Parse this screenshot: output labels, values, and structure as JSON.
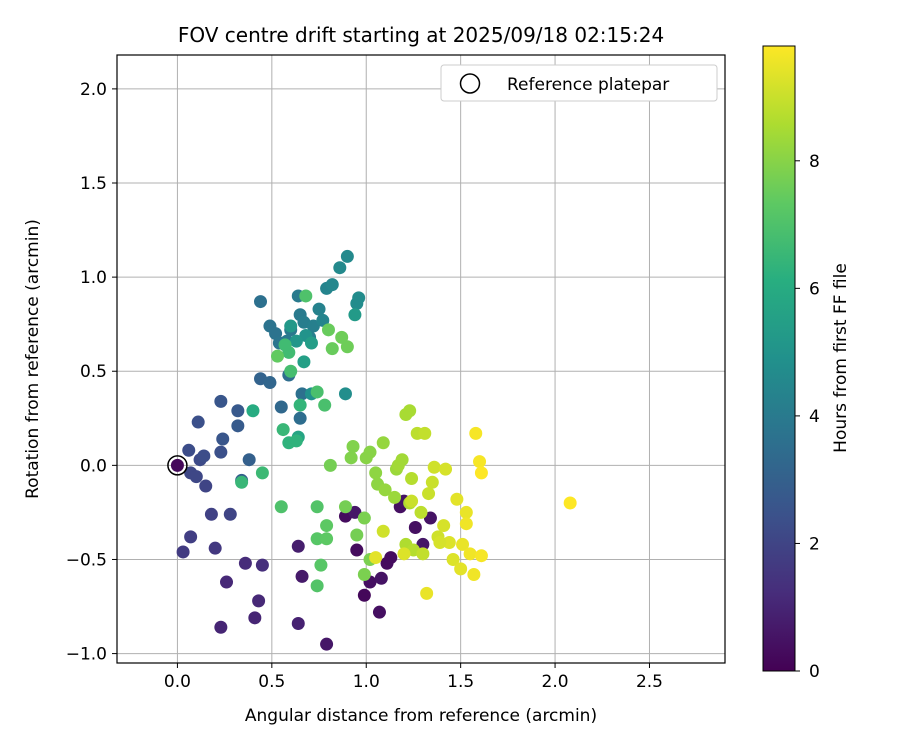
{
  "chart_data": {
    "type": "scatter",
    "title": "FOV centre drift starting at 2025/09/18 02:15:24",
    "xlabel": "Angular distance from reference (arcmin)",
    "ylabel": "Rotation from reference (arcmin)",
    "xlim": [
      -0.32,
      2.9
    ],
    "ylim": [
      -1.05,
      2.18
    ],
    "xticks": [
      "0.0",
      "0.5",
      "1.0",
      "1.5",
      "2.0",
      "2.5"
    ],
    "xtick_values": [
      0,
      0.5,
      1.0,
      1.5,
      2.0,
      2.5
    ],
    "yticks": [
      "−1.0",
      "−0.5",
      "0.0",
      "0.5",
      "1.0",
      "1.5",
      "2.0"
    ],
    "ytick_values": [
      -1.0,
      -0.5,
      0.0,
      0.5,
      1.0,
      1.5,
      2.0
    ],
    "grid": true,
    "legend": {
      "position": "top-right",
      "label": "Reference platepar"
    },
    "reference_point": {
      "x": 0.0,
      "y": 0.0
    },
    "colorbar": {
      "label": "Hours from first FF file",
      "colormap": "viridis",
      "range": [
        0,
        9.8
      ],
      "ticks": [
        "0",
        "2",
        "4",
        "6",
        "8"
      ],
      "tick_values": [
        0,
        2,
        4,
        6,
        8
      ]
    },
    "point_color_encoding": "c = hours from first FF file",
    "points": [
      {
        "x": 0.0,
        "y": 0.0,
        "c": 0.2
      },
      {
        "x": 0.89,
        "y": -0.27,
        "c": 0.3
      },
      {
        "x": 0.95,
        "y": -0.45,
        "c": 0.3
      },
      {
        "x": 0.99,
        "y": -0.69,
        "c": 0.2
      },
      {
        "x": 1.02,
        "y": -0.62,
        "c": 0.4
      },
      {
        "x": 1.07,
        "y": -0.78,
        "c": 0.4
      },
      {
        "x": 1.08,
        "y": -0.6,
        "c": 0.5
      },
      {
        "x": 1.11,
        "y": -0.52,
        "c": 0.3
      },
      {
        "x": 1.13,
        "y": -0.49,
        "c": 0.3
      },
      {
        "x": 1.18,
        "y": -0.22,
        "c": 0.4
      },
      {
        "x": 1.2,
        "y": -0.19,
        "c": 0.5
      },
      {
        "x": 1.26,
        "y": -0.33,
        "c": 0.4
      },
      {
        "x": 1.3,
        "y": -0.42,
        "c": 0.6
      },
      {
        "x": 1.34,
        "y": -0.28,
        "c": 0.5
      },
      {
        "x": 0.94,
        "y": -0.25,
        "c": 0.6
      },
      {
        "x": 0.79,
        "y": -0.95,
        "c": 0.6
      },
      {
        "x": 0.66,
        "y": -0.59,
        "c": 0.7
      },
      {
        "x": 0.64,
        "y": -0.43,
        "c": 0.8
      },
      {
        "x": 0.64,
        "y": -0.84,
        "c": 0.9
      },
      {
        "x": 0.23,
        "y": -0.86,
        "c": 1.0
      },
      {
        "x": 0.41,
        "y": -0.81,
        "c": 1.0
      },
      {
        "x": 0.43,
        "y": -0.72,
        "c": 1.1
      },
      {
        "x": 0.26,
        "y": -0.62,
        "c": 1.1
      },
      {
        "x": 0.36,
        "y": -0.52,
        "c": 1.2
      },
      {
        "x": 0.45,
        "y": -0.53,
        "c": 1.3
      },
      {
        "x": 0.2,
        "y": -0.44,
        "c": 1.6
      },
      {
        "x": 0.03,
        "y": -0.46,
        "c": 1.7
      },
      {
        "x": 0.07,
        "y": -0.38,
        "c": 1.8
      },
      {
        "x": 0.18,
        "y": -0.26,
        "c": 1.9
      },
      {
        "x": 0.28,
        "y": -0.26,
        "c": 2.0
      },
      {
        "x": 0.15,
        "y": -0.11,
        "c": 2.0
      },
      {
        "x": 0.07,
        "y": -0.04,
        "c": 2.1
      },
      {
        "x": 0.1,
        "y": -0.06,
        "c": 2.1
      },
      {
        "x": 0.12,
        "y": 0.03,
        "c": 2.2
      },
      {
        "x": 0.14,
        "y": 0.05,
        "c": 2.3
      },
      {
        "x": 0.06,
        "y": 0.08,
        "c": 2.3
      },
      {
        "x": 0.23,
        "y": 0.07,
        "c": 2.4
      },
      {
        "x": 0.11,
        "y": 0.23,
        "c": 2.4
      },
      {
        "x": 0.24,
        "y": 0.14,
        "c": 2.6
      },
      {
        "x": 0.23,
        "y": 0.34,
        "c": 2.6
      },
      {
        "x": 0.32,
        "y": 0.29,
        "c": 2.7
      },
      {
        "x": 0.32,
        "y": 0.21,
        "c": 2.8
      },
      {
        "x": 0.38,
        "y": 0.03,
        "c": 3.0
      },
      {
        "x": 0.34,
        "y": -0.08,
        "c": 3.0
      },
      {
        "x": 0.44,
        "y": 0.46,
        "c": 3.1
      },
      {
        "x": 0.49,
        "y": 0.44,
        "c": 3.2
      },
      {
        "x": 0.55,
        "y": 0.31,
        "c": 3.3
      },
      {
        "x": 0.59,
        "y": 0.48,
        "c": 3.5
      },
      {
        "x": 0.65,
        "y": 0.25,
        "c": 3.5
      },
      {
        "x": 0.66,
        "y": 0.38,
        "c": 3.6
      },
      {
        "x": 0.44,
        "y": 0.87,
        "c": 3.6
      },
      {
        "x": 0.49,
        "y": 0.74,
        "c": 3.7
      },
      {
        "x": 0.52,
        "y": 0.7,
        "c": 3.7
      },
      {
        "x": 0.54,
        "y": 0.65,
        "c": 3.8
      },
      {
        "x": 0.58,
        "y": 0.66,
        "c": 3.9
      },
      {
        "x": 0.6,
        "y": 0.72,
        "c": 3.9
      },
      {
        "x": 0.64,
        "y": 0.9,
        "c": 4.0
      },
      {
        "x": 0.65,
        "y": 0.8,
        "c": 4.0
      },
      {
        "x": 0.67,
        "y": 0.76,
        "c": 4.1
      },
      {
        "x": 0.7,
        "y": 0.68,
        "c": 4.2
      },
      {
        "x": 0.72,
        "y": 0.74,
        "c": 4.2
      },
      {
        "x": 0.75,
        "y": 0.83,
        "c": 4.3
      },
      {
        "x": 0.77,
        "y": 0.77,
        "c": 4.4
      },
      {
        "x": 0.79,
        "y": 0.94,
        "c": 4.4
      },
      {
        "x": 0.82,
        "y": 0.96,
        "c": 4.5
      },
      {
        "x": 0.86,
        "y": 1.05,
        "c": 4.6
      },
      {
        "x": 0.9,
        "y": 1.11,
        "c": 4.6
      },
      {
        "x": 0.95,
        "y": 0.86,
        "c": 4.7
      },
      {
        "x": 0.96,
        "y": 0.89,
        "c": 4.7
      },
      {
        "x": 0.89,
        "y": 0.38,
        "c": 4.8
      },
      {
        "x": 0.71,
        "y": 0.38,
        "c": 4.9
      },
      {
        "x": 0.68,
        "y": 0.69,
        "c": 5.0
      },
      {
        "x": 0.63,
        "y": 0.66,
        "c": 5.1
      },
      {
        "x": 0.6,
        "y": 0.74,
        "c": 5.2
      },
      {
        "x": 0.94,
        "y": 0.8,
        "c": 5.3
      },
      {
        "x": 0.71,
        "y": 0.65,
        "c": 5.4
      },
      {
        "x": 0.67,
        "y": 0.55,
        "c": 5.5
      },
      {
        "x": 0.64,
        "y": 0.15,
        "c": 5.7
      },
      {
        "x": 0.4,
        "y": 0.29,
        "c": 6.0
      },
      {
        "x": 0.59,
        "y": 0.12,
        "c": 6.3
      },
      {
        "x": 0.63,
        "y": 0.13,
        "c": 6.3
      },
      {
        "x": 0.65,
        "y": 0.32,
        "c": 6.4
      },
      {
        "x": 0.56,
        "y": 0.19,
        "c": 6.5
      },
      {
        "x": 0.34,
        "y": -0.09,
        "c": 6.5
      },
      {
        "x": 0.45,
        "y": -0.04,
        "c": 6.6
      },
      {
        "x": 0.59,
        "y": 0.6,
        "c": 6.7
      },
      {
        "x": 0.57,
        "y": 0.64,
        "c": 6.7
      },
      {
        "x": 0.6,
        "y": 0.5,
        "c": 6.8
      },
      {
        "x": 0.74,
        "y": 0.39,
        "c": 6.9
      },
      {
        "x": 0.78,
        "y": 0.32,
        "c": 6.9
      },
      {
        "x": 0.68,
        "y": 0.9,
        "c": 7.0
      },
      {
        "x": 0.55,
        "y": -0.22,
        "c": 7.0
      },
      {
        "x": 0.74,
        "y": -0.22,
        "c": 7.1
      },
      {
        "x": 0.74,
        "y": -0.64,
        "c": 7.1
      },
      {
        "x": 0.76,
        "y": -0.53,
        "c": 7.2
      },
      {
        "x": 0.74,
        "y": -0.39,
        "c": 7.2
      },
      {
        "x": 0.79,
        "y": -0.39,
        "c": 7.3
      },
      {
        "x": 0.79,
        "y": -0.32,
        "c": 7.3
      },
      {
        "x": 0.53,
        "y": 0.58,
        "c": 7.4
      },
      {
        "x": 0.8,
        "y": 0.72,
        "c": 7.5
      },
      {
        "x": 0.82,
        "y": 0.62,
        "c": 7.5
      },
      {
        "x": 0.87,
        "y": 0.68,
        "c": 7.6
      },
      {
        "x": 0.9,
        "y": 0.63,
        "c": 7.6
      },
      {
        "x": 0.81,
        "y": 0.0,
        "c": 7.7
      },
      {
        "x": 0.89,
        "y": -0.22,
        "c": 7.7
      },
      {
        "x": 0.95,
        "y": -0.37,
        "c": 7.7
      },
      {
        "x": 0.99,
        "y": -0.58,
        "c": 7.8
      },
      {
        "x": 1.02,
        "y": -0.5,
        "c": 7.8
      },
      {
        "x": 0.99,
        "y": -0.28,
        "c": 7.8
      },
      {
        "x": 0.92,
        "y": 0.04,
        "c": 7.9
      },
      {
        "x": 0.93,
        "y": 0.1,
        "c": 7.9
      },
      {
        "x": 1.0,
        "y": 0.04,
        "c": 8.0
      },
      {
        "x": 1.02,
        "y": 0.07,
        "c": 8.0
      },
      {
        "x": 1.05,
        "y": -0.04,
        "c": 8.1
      },
      {
        "x": 1.06,
        "y": -0.1,
        "c": 8.1
      },
      {
        "x": 1.09,
        "y": 0.12,
        "c": 8.2
      },
      {
        "x": 1.1,
        "y": -0.13,
        "c": 8.2
      },
      {
        "x": 1.15,
        "y": -0.17,
        "c": 8.3
      },
      {
        "x": 1.16,
        "y": -0.02,
        "c": 8.3
      },
      {
        "x": 1.17,
        "y": 0.0,
        "c": 8.4
      },
      {
        "x": 1.19,
        "y": 0.03,
        "c": 8.4
      },
      {
        "x": 1.21,
        "y": 0.27,
        "c": 8.5
      },
      {
        "x": 1.23,
        "y": 0.29,
        "c": 8.5
      },
      {
        "x": 1.21,
        "y": -0.42,
        "c": 8.6
      },
      {
        "x": 1.23,
        "y": -0.2,
        "c": 8.6
      },
      {
        "x": 1.24,
        "y": -0.07,
        "c": 8.7
      },
      {
        "x": 1.25,
        "y": -0.45,
        "c": 8.7
      },
      {
        "x": 1.27,
        "y": 0.17,
        "c": 8.8
      },
      {
        "x": 1.29,
        "y": -0.25,
        "c": 8.8
      },
      {
        "x": 1.3,
        "y": -0.47,
        "c": 8.9
      },
      {
        "x": 1.31,
        "y": 0.17,
        "c": 8.9
      },
      {
        "x": 1.33,
        "y": -0.15,
        "c": 9.0
      },
      {
        "x": 1.35,
        "y": -0.09,
        "c": 9.0
      },
      {
        "x": 1.36,
        "y": -0.01,
        "c": 9.1
      },
      {
        "x": 1.38,
        "y": -0.38,
        "c": 9.1
      },
      {
        "x": 1.41,
        "y": -0.32,
        "c": 9.2
      },
      {
        "x": 1.42,
        "y": -0.02,
        "c": 9.2
      },
      {
        "x": 1.44,
        "y": -0.41,
        "c": 9.3
      },
      {
        "x": 1.46,
        "y": -0.5,
        "c": 9.3
      },
      {
        "x": 1.48,
        "y": -0.18,
        "c": 9.4
      },
      {
        "x": 1.5,
        "y": -0.55,
        "c": 9.4
      },
      {
        "x": 1.51,
        "y": -0.42,
        "c": 9.5
      },
      {
        "x": 1.53,
        "y": -0.25,
        "c": 9.5
      },
      {
        "x": 1.53,
        "y": -0.31,
        "c": 9.6
      },
      {
        "x": 1.55,
        "y": -0.47,
        "c": 9.6
      },
      {
        "x": 1.57,
        "y": -0.58,
        "c": 9.6
      },
      {
        "x": 1.58,
        "y": 0.17,
        "c": 9.7
      },
      {
        "x": 1.6,
        "y": 0.02,
        "c": 9.7
      },
      {
        "x": 1.61,
        "y": -0.48,
        "c": 9.7
      },
      {
        "x": 1.61,
        "y": -0.04,
        "c": 9.8
      },
      {
        "x": 2.08,
        "y": -0.2,
        "c": 9.8
      },
      {
        "x": 1.24,
        "y": -0.19,
        "c": 9.0
      },
      {
        "x": 1.39,
        "y": -0.41,
        "c": 9.2
      },
      {
        "x": 1.09,
        "y": -0.35,
        "c": 9.1
      },
      {
        "x": 1.2,
        "y": -0.47,
        "c": 9.3
      },
      {
        "x": 1.05,
        "y": -0.49,
        "c": 9.4
      },
      {
        "x": 1.32,
        "y": -0.68,
        "c": 9.5
      }
    ]
  }
}
